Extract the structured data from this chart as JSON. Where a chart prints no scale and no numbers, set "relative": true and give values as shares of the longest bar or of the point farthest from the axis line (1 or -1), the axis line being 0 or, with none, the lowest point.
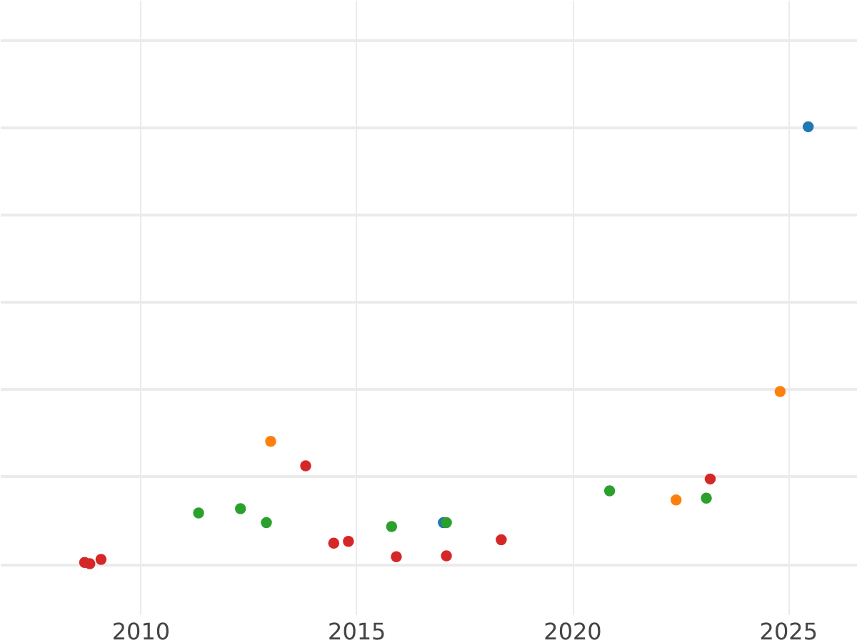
{
  "chart_data": {
    "type": "scatter",
    "relative": true,
    "xlim": [
      2006.75,
      2026.6
    ],
    "xticks": [
      2010,
      2015,
      2020,
      2025
    ],
    "grid": true,
    "marker": "circle",
    "series": [
      {
        "color": "#d62728",
        "x": [
          2008.71,
          2008.83,
          2009.09,
          2013.83,
          2014.48,
          2014.82,
          2015.93,
          2017.09,
          2018.36,
          2023.2
        ],
        "values": [
          0.003,
          0,
          0.01,
          0.224,
          0.047,
          0.051,
          0.016,
          0.018,
          0.055,
          0.194
        ]
      },
      {
        "color": "#2ca02c",
        "x": [
          2011.35,
          2012.32,
          2012.92,
          2015.82,
          2017.09,
          2020.87,
          2023.11
        ],
        "values": [
          0.116,
          0.126,
          0.094,
          0.085,
          0.094,
          0.167,
          0.15
        ]
      },
      {
        "color": "#ff7f0e",
        "x": [
          2013.02,
          2022.41,
          2024.82
        ],
        "values": [
          0.28,
          0.146,
          0.394
        ]
      },
      {
        "color": "#1f77b4",
        "x": [
          2017.02,
          2025.47
        ],
        "values": [
          0.094,
          1
        ]
      }
    ]
  }
}
